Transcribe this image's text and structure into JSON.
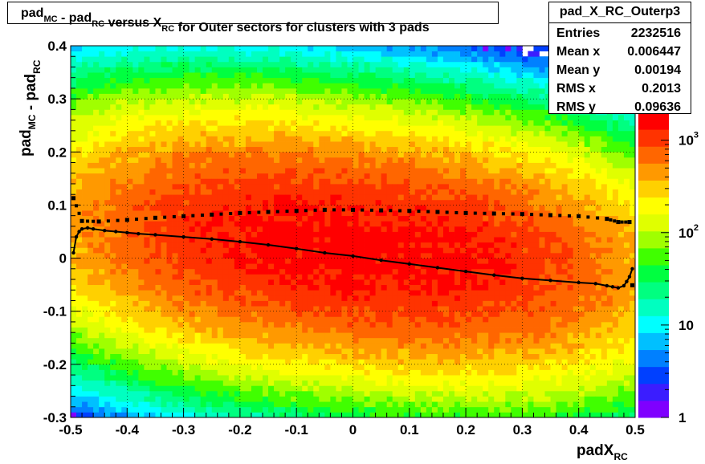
{
  "chart_data": {
    "type": "heatmap",
    "title": {
      "parts": [
        {
          "text": "pad",
          "sub": "MC"
        },
        {
          "text": " - pad",
          "sub": "RC"
        },
        {
          "text": " versus X",
          "sub": "RC"
        },
        {
          "text": " for Outer sectors for clusters with 3 pads",
          "sub": ""
        }
      ]
    },
    "xlabel": {
      "text": "padX",
      "sub": "RC"
    },
    "ylabel": {
      "parts": [
        {
          "text": "pad",
          "sub": "MC"
        },
        {
          "text": " - pad",
          "sub": "RC"
        }
      ]
    },
    "xlim": [
      -0.5,
      0.5
    ],
    "ylim": [
      -0.3,
      0.4
    ],
    "xticks": [
      "-0.5",
      "-0.4",
      "-0.3",
      "-0.2",
      "-0.1",
      "0",
      "0.1",
      "0.2",
      "0.3",
      "0.4",
      "0.5"
    ],
    "yticks": [
      "-0.3",
      "-0.2",
      "-0.1",
      "0",
      "0.1",
      "0.2",
      "0.3",
      "0.4"
    ],
    "grid": true,
    "z_scale": "log",
    "zlim": [
      1,
      2000
    ],
    "z_tick_labels": [
      {
        "value": 1,
        "label": "1",
        "exp": ""
      },
      {
        "value": 10,
        "label": "10",
        "exp": ""
      },
      {
        "value": 100,
        "label": "10",
        "exp": "2"
      },
      {
        "value": 1000,
        "label": "10",
        "exp": "3"
      }
    ],
    "colormap": [
      "#7f00ff",
      "#3b1dff",
      "#0040ff",
      "#0080ff",
      "#00c0ff",
      "#00ffff",
      "#00ffc0",
      "#00ff80",
      "#00ff40",
      "#40ff00",
      "#a0ff00",
      "#e0ff00",
      "#ffff00",
      "#ffd000",
      "#ff9900",
      "#ff6600",
      "#ff3300",
      "#ff0000"
    ],
    "heatmap_model": {
      "peak_counts": 1600,
      "center_x": 0.0,
      "center_y": 0.02,
      "tilt_dy_per_dx": -0.1,
      "sigma_x": 0.34,
      "sigma_y": 0.115,
      "x_bins": 100,
      "y_bins": 70
    },
    "series": [
      {
        "name": "",
        "style": "line-with-markers",
        "points": [
          [
            -0.495,
            0.01
          ],
          [
            -0.49,
            0.04
          ],
          [
            -0.485,
            0.05
          ],
          [
            -0.48,
            0.055
          ],
          [
            -0.47,
            0.057
          ],
          [
            -0.46,
            0.055
          ],
          [
            -0.44,
            0.052
          ],
          [
            -0.42,
            0.05
          ],
          [
            -0.4,
            0.048
          ],
          [
            -0.38,
            0.046
          ],
          [
            -0.35,
            0.044
          ],
          [
            -0.3,
            0.04
          ],
          [
            -0.25,
            0.036
          ],
          [
            -0.2,
            0.031
          ],
          [
            -0.15,
            0.025
          ],
          [
            -0.1,
            0.018
          ],
          [
            -0.05,
            0.01
          ],
          [
            0.0,
            0.004
          ],
          [
            0.05,
            -0.004
          ],
          [
            0.1,
            -0.011
          ],
          [
            0.15,
            -0.018
          ],
          [
            0.2,
            -0.025
          ],
          [
            0.25,
            -0.032
          ],
          [
            0.3,
            -0.038
          ],
          [
            0.35,
            -0.042
          ],
          [
            0.4,
            -0.046
          ],
          [
            0.43,
            -0.048
          ],
          [
            0.45,
            -0.052
          ],
          [
            0.46,
            -0.054
          ],
          [
            0.47,
            -0.056
          ],
          [
            0.48,
            -0.052
          ],
          [
            0.485,
            -0.044
          ],
          [
            0.49,
            -0.035
          ],
          [
            0.495,
            -0.02
          ]
        ]
      },
      {
        "name": "",
        "style": "markers",
        "points": [
          [
            -0.495,
            0.113
          ],
          [
            -0.48,
            0.07
          ],
          [
            -0.45,
            0.069
          ],
          [
            -0.4,
            0.072
          ],
          [
            -0.35,
            0.076
          ],
          [
            -0.3,
            0.079
          ],
          [
            -0.25,
            0.082
          ],
          [
            -0.2,
            0.085
          ],
          [
            -0.15,
            0.087
          ],
          [
            -0.1,
            0.089
          ],
          [
            -0.05,
            0.091
          ],
          [
            0.0,
            0.091
          ],
          [
            0.05,
            0.09
          ],
          [
            0.1,
            0.089
          ],
          [
            0.15,
            0.087
          ],
          [
            0.2,
            0.085
          ],
          [
            0.25,
            0.084
          ],
          [
            0.3,
            0.083
          ],
          [
            0.35,
            0.081
          ],
          [
            0.4,
            0.079
          ],
          [
            0.45,
            0.074
          ],
          [
            0.47,
            0.068
          ],
          [
            0.49,
            0.068
          ],
          [
            0.495,
            -0.051
          ]
        ]
      }
    ]
  },
  "stats": {
    "name": "pad_X_RC_Outerp3",
    "rows": [
      {
        "key": "Entries",
        "value": "2232516"
      },
      {
        "key": "Mean x",
        "value": "0.006447"
      },
      {
        "key": "Mean y",
        "value": "0.00194"
      },
      {
        "key": "RMS x",
        "value": "0.2013"
      },
      {
        "key": "RMS y",
        "value": "0.09636"
      }
    ]
  }
}
